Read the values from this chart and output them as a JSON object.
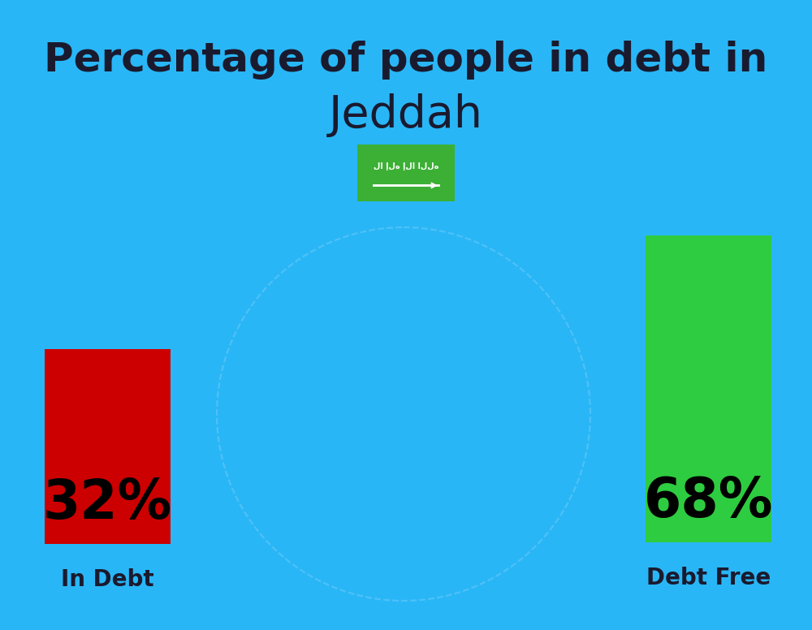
{
  "background_color": "#29B6F6",
  "title_line1": "Percentage of people in debt in",
  "title_line2": "Jeddah",
  "title_color": "#1a1a2e",
  "title_fontsize": 36,
  "title_line2_fontsize": 40,
  "bar1_value": 32,
  "bar2_value": 68,
  "bar1_color": "#CC0000",
  "bar2_color": "#2ECC40",
  "bar1_label": "In Debt",
  "bar2_label": "Debt Free",
  "label_color": "#1a1a2e",
  "label_fontsize": 20,
  "pct_fontsize": 48,
  "pct_color": "#000000",
  "flag_color": "#3CB034",
  "flag_text_color": "#FFFFFF"
}
